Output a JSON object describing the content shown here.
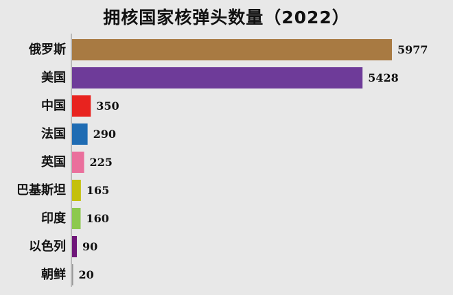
{
  "chart_data": {
    "type": "bar",
    "orientation": "horizontal",
    "title": "拥核国家核弹头数量（2022）",
    "xlabel": "",
    "ylabel": "",
    "xlim": [
      0,
      6000
    ],
    "grid": false,
    "legend": "none",
    "categories": [
      "俄罗斯",
      "美国",
      "中国",
      "法国",
      "英国",
      "巴基斯坦",
      "印度",
      "以色列",
      "朝鲜"
    ],
    "values": [
      5977,
      5428,
      350,
      290,
      225,
      165,
      160,
      90,
      20
    ],
    "data_labels": [
      "5977",
      "5428",
      "350",
      "290",
      "225",
      "165",
      "160",
      "90",
      "20"
    ],
    "colors": [
      "#a87a42",
      "#6e3b99",
      "#e8231f",
      "#1f6cb3",
      "#ea6f9c",
      "#c4c00c",
      "#8cc94e",
      "#6e1578",
      "#999999"
    ]
  }
}
